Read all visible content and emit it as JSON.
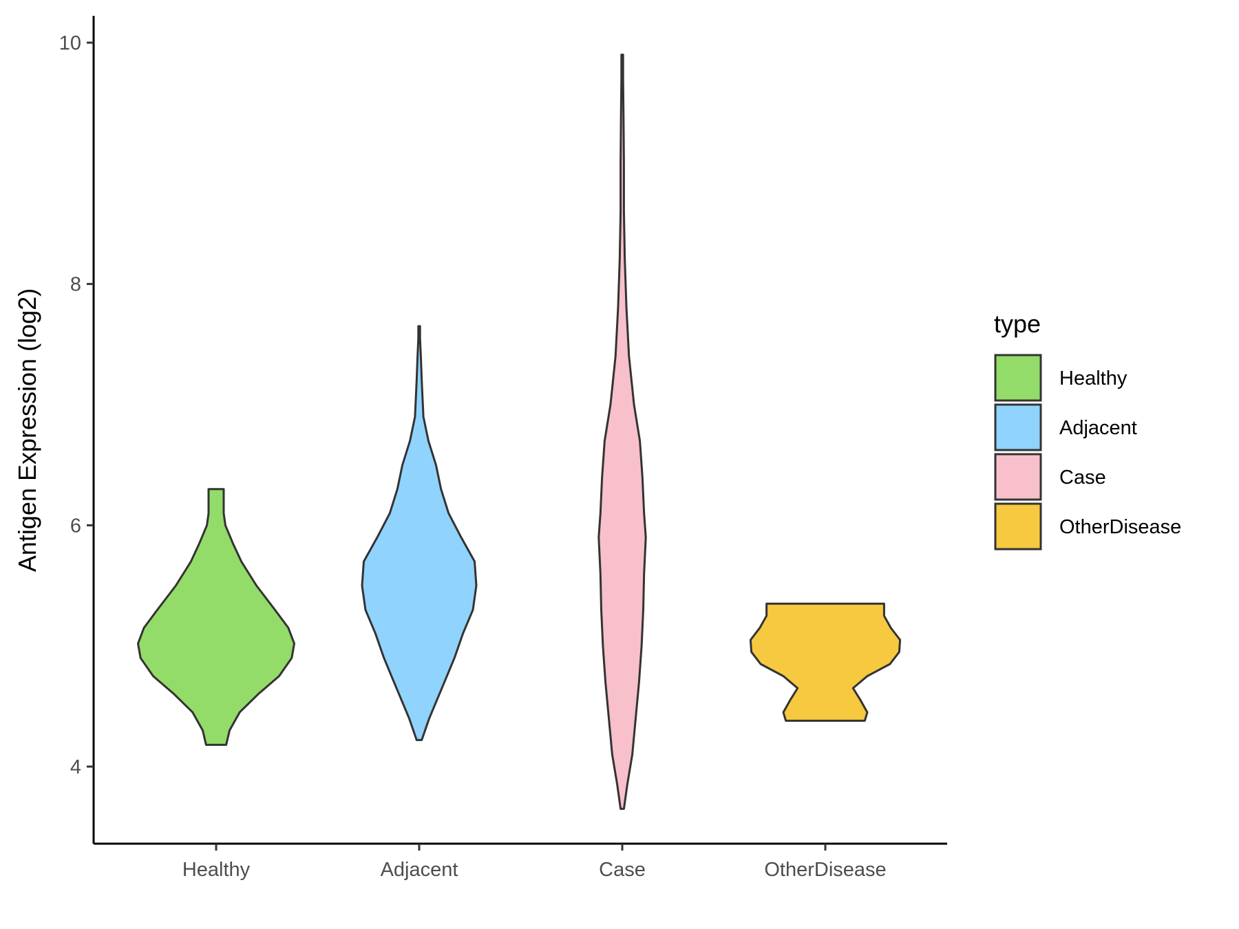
{
  "chart_data": {
    "type": "violin",
    "title": "",
    "xlabel": "",
    "ylabel": "Antigen Expression (log2)",
    "ylim": [
      3.35,
      10.25
    ],
    "yticks": [
      4,
      6,
      8,
      10
    ],
    "categories": [
      "Healthy",
      "Adjacent",
      "Case",
      "OtherDisease"
    ],
    "legend": {
      "title": "type",
      "position": "right",
      "items": [
        {
          "label": "Healthy",
          "color": "#93DC69"
        },
        {
          "label": "Adjacent",
          "color": "#90D3FD"
        },
        {
          "label": "Case",
          "color": "#F7C0CA"
        },
        {
          "label": "OtherDisease",
          "color": "#F6C940"
        }
      ]
    },
    "series": [
      {
        "name": "Healthy",
        "color": "#93DC69",
        "min": 4.18,
        "max": 6.3,
        "density": [
          [
            4.18,
            0.12
          ],
          [
            4.3,
            0.16
          ],
          [
            4.45,
            0.28
          ],
          [
            4.6,
            0.5
          ],
          [
            4.75,
            0.75
          ],
          [
            4.9,
            0.9
          ],
          [
            5.02,
            0.93
          ],
          [
            5.15,
            0.86
          ],
          [
            5.3,
            0.7
          ],
          [
            5.5,
            0.48
          ],
          [
            5.7,
            0.3
          ],
          [
            5.85,
            0.2
          ],
          [
            6.0,
            0.11
          ],
          [
            6.1,
            0.09
          ],
          [
            6.2,
            0.09
          ],
          [
            6.3,
            0.09
          ]
        ]
      },
      {
        "name": "Adjacent",
        "color": "#90D3FD",
        "min": 4.22,
        "max": 7.65,
        "density": [
          [
            4.22,
            0.03
          ],
          [
            4.4,
            0.12
          ],
          [
            4.7,
            0.3
          ],
          [
            4.9,
            0.42
          ],
          [
            5.1,
            0.52
          ],
          [
            5.3,
            0.64
          ],
          [
            5.5,
            0.68
          ],
          [
            5.7,
            0.66
          ],
          [
            5.9,
            0.5
          ],
          [
            6.1,
            0.35
          ],
          [
            6.3,
            0.26
          ],
          [
            6.5,
            0.2
          ],
          [
            6.7,
            0.11
          ],
          [
            6.9,
            0.05
          ],
          [
            7.2,
            0.03
          ],
          [
            7.4,
            0.02
          ],
          [
            7.55,
            0.01
          ],
          [
            7.65,
            0.01
          ]
        ]
      },
      {
        "name": "Case",
        "color": "#F7C0CA",
        "min": 3.65,
        "max": 9.9,
        "density": [
          [
            3.65,
            0.02
          ],
          [
            3.85,
            0.06
          ],
          [
            4.1,
            0.12
          ],
          [
            4.4,
            0.16
          ],
          [
            4.7,
            0.2
          ],
          [
            5.0,
            0.23
          ],
          [
            5.3,
            0.25
          ],
          [
            5.6,
            0.26
          ],
          [
            5.9,
            0.28
          ],
          [
            6.1,
            0.26
          ],
          [
            6.4,
            0.24
          ],
          [
            6.7,
            0.21
          ],
          [
            7.0,
            0.14
          ],
          [
            7.4,
            0.08
          ],
          [
            7.8,
            0.05
          ],
          [
            8.2,
            0.03
          ],
          [
            8.6,
            0.02
          ],
          [
            9.0,
            0.02
          ],
          [
            9.4,
            0.015
          ],
          [
            9.7,
            0.01
          ],
          [
            9.9,
            0.01
          ]
        ]
      },
      {
        "name": "OtherDisease",
        "color": "#F6C940",
        "min": 4.38,
        "max": 5.35,
        "density": [
          [
            4.38,
            0.47
          ],
          [
            4.45,
            0.5
          ],
          [
            4.55,
            0.42
          ],
          [
            4.65,
            0.33
          ],
          [
            4.75,
            0.5
          ],
          [
            4.85,
            0.77
          ],
          [
            4.95,
            0.88
          ],
          [
            5.05,
            0.89
          ],
          [
            5.15,
            0.78
          ],
          [
            5.25,
            0.7
          ],
          [
            5.35,
            0.7
          ]
        ]
      }
    ]
  }
}
